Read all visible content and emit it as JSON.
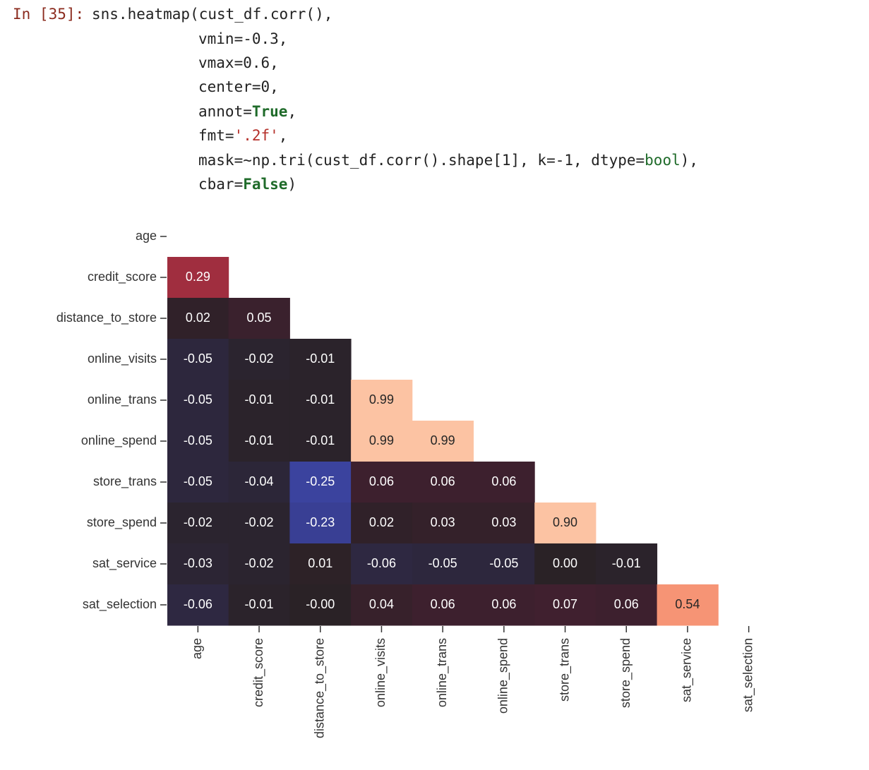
{
  "code": {
    "prompt": "In [35]:",
    "lines": [
      [
        {
          "text": "sns.heatmap(cust_df.corr(),",
          "color": "#222222",
          "bold": false
        }
      ],
      [
        {
          "text": "vmin=-0.3,",
          "color": "#222222",
          "bold": false
        }
      ],
      [
        {
          "text": "vmax=0.6,",
          "color": "#222222",
          "bold": false
        }
      ],
      [
        {
          "text": "center=0,",
          "color": "#222222",
          "bold": false
        }
      ],
      [
        {
          "text": "annot=",
          "color": "#222222",
          "bold": false
        },
        {
          "text": "True",
          "color": "#1f6b2a",
          "bold": true
        },
        {
          "text": ",",
          "color": "#222222",
          "bold": false
        }
      ],
      [
        {
          "text": "fmt=",
          "color": "#222222",
          "bold": false
        },
        {
          "text": "'.2f'",
          "color": "#b5302a",
          "bold": false
        },
        {
          "text": ",",
          "color": "#222222",
          "bold": false
        }
      ],
      [
        {
          "text": "mask=~np.tri(cust_df.corr().shape[1], k=-1, dtype=",
          "color": "#222222",
          "bold": false
        },
        {
          "text": "bool",
          "color": "#1f6b2a",
          "bold": false
        },
        {
          "text": "),",
          "color": "#222222",
          "bold": false
        }
      ],
      [
        {
          "text": "cbar=",
          "color": "#222222",
          "bold": false
        },
        {
          "text": "False",
          "color": "#1f6b2a",
          "bold": true
        },
        {
          "text": ")",
          "color": "#222222",
          "bold": false
        }
      ]
    ],
    "prompt_color": "#8b2b1e"
  },
  "chart_data": {
    "type": "heatmap",
    "rows": [
      "age",
      "credit_score",
      "distance_to_store",
      "online_visits",
      "online_trans",
      "online_spend",
      "store_trans",
      "store_spend",
      "sat_service",
      "sat_selection"
    ],
    "columns": [
      "age",
      "credit_score",
      "distance_to_store",
      "online_visits",
      "online_trans",
      "online_spend",
      "store_trans",
      "store_spend",
      "sat_service",
      "sat_selection"
    ],
    "values": [
      [
        null,
        null,
        null,
        null,
        null,
        null,
        null,
        null,
        null,
        null
      ],
      [
        0.29,
        null,
        null,
        null,
        null,
        null,
        null,
        null,
        null,
        null
      ],
      [
        0.02,
        0.05,
        null,
        null,
        null,
        null,
        null,
        null,
        null,
        null
      ],
      [
        -0.05,
        -0.02,
        -0.01,
        null,
        null,
        null,
        null,
        null,
        null,
        null
      ],
      [
        -0.05,
        -0.01,
        -0.01,
        0.99,
        null,
        null,
        null,
        null,
        null,
        null
      ],
      [
        -0.05,
        -0.01,
        -0.01,
        0.99,
        0.99,
        null,
        null,
        null,
        null,
        null
      ],
      [
        -0.05,
        -0.04,
        -0.25,
        0.06,
        0.06,
        0.06,
        null,
        null,
        null,
        null
      ],
      [
        -0.02,
        -0.02,
        -0.23,
        0.02,
        0.03,
        0.03,
        0.9,
        null,
        null,
        null
      ],
      [
        -0.03,
        -0.02,
        0.01,
        -0.06,
        -0.05,
        -0.05,
        0.0,
        -0.01,
        null,
        null
      ],
      [
        -0.06,
        -0.01,
        -0.0,
        0.04,
        0.06,
        0.06,
        0.07,
        0.06,
        0.54,
        null
      ]
    ],
    "value_labels": [
      [
        null,
        null,
        null,
        null,
        null,
        null,
        null,
        null,
        null,
        null
      ],
      [
        "0.29",
        null,
        null,
        null,
        null,
        null,
        null,
        null,
        null,
        null
      ],
      [
        "0.02",
        "0.05",
        null,
        null,
        null,
        null,
        null,
        null,
        null,
        null
      ],
      [
        "-0.05",
        "-0.02",
        "-0.01",
        null,
        null,
        null,
        null,
        null,
        null,
        null
      ],
      [
        "-0.05",
        "-0.01",
        "-0.01",
        "0.99",
        null,
        null,
        null,
        null,
        null,
        null
      ],
      [
        "-0.05",
        "-0.01",
        "-0.01",
        "0.99",
        "0.99",
        null,
        null,
        null,
        null,
        null
      ],
      [
        "-0.05",
        "-0.04",
        "-0.25",
        "0.06",
        "0.06",
        "0.06",
        null,
        null,
        null,
        null
      ],
      [
        "-0.02",
        "-0.02",
        "-0.23",
        "0.02",
        "0.03",
        "0.03",
        "0.90",
        null,
        null,
        null
      ],
      [
        "-0.03",
        "-0.02",
        "0.01",
        "-0.06",
        "-0.05",
        "-0.05",
        "0.00",
        "-0.01",
        null,
        null
      ],
      [
        "-0.06",
        "-0.01",
        "-0.00",
        "0.04",
        "0.06",
        "0.06",
        "0.07",
        "0.06",
        "0.54",
        null
      ]
    ],
    "vmin": -0.3,
    "vmax": 0.6,
    "center": 0,
    "cmap_low": [
      "#3f4cb8",
      "#33306a",
      "#2a2226"
    ],
    "cmap_high": [
      "#2a2226",
      "#4a1f33",
      "#76203c",
      "#a5303f",
      "#d8403c",
      "#f27456",
      "#fcc3a3"
    ]
  }
}
